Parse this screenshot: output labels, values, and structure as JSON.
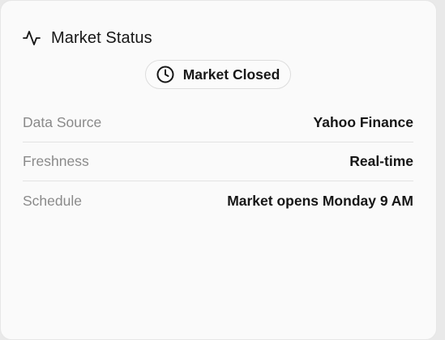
{
  "card": {
    "title": "Market Status",
    "title_icon": "activity-icon"
  },
  "status": {
    "label": "Market Closed",
    "icon": "clock-icon"
  },
  "details": [
    {
      "key": "Data Source",
      "value": "Yahoo Finance"
    },
    {
      "key": "Freshness",
      "value": "Real-time"
    },
    {
      "key": "Schedule",
      "value": "Market opens Monday 9 AM"
    }
  ],
  "colors": {
    "text": "#161616",
    "muted": "#8a8a8a",
    "divider": "#e3e3e3",
    "background": "#fafafa"
  }
}
